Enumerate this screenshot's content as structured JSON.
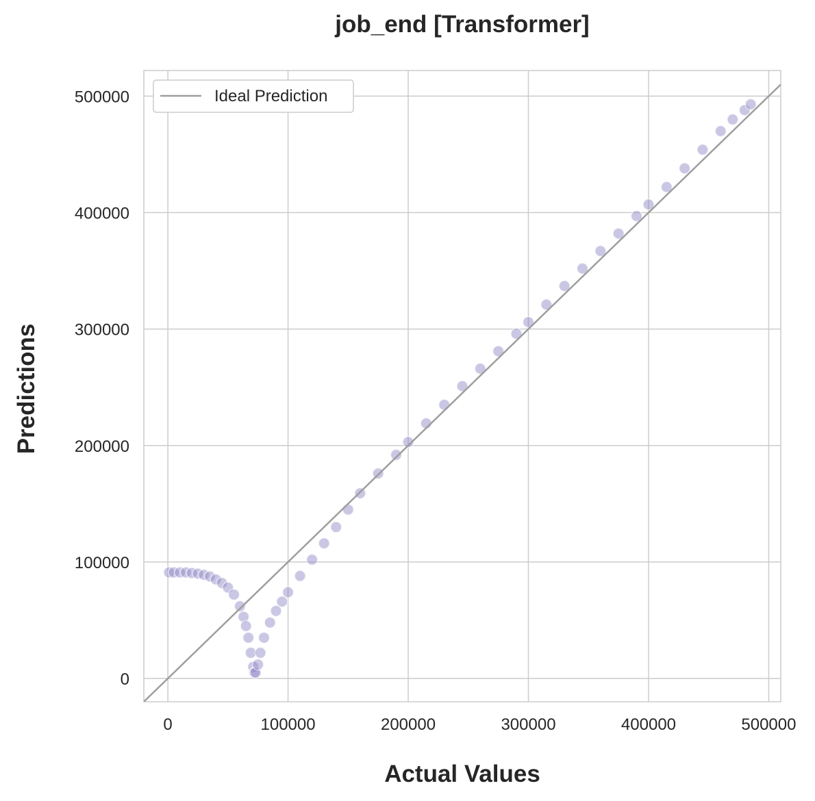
{
  "chart_data": {
    "type": "scatter",
    "title": "job_end [Transformer]",
    "xlabel": "Actual Values",
    "ylabel": "Predictions",
    "xlim": [
      -20000,
      510000
    ],
    "ylim": [
      -20000,
      522000
    ],
    "xticks": [
      0,
      100000,
      200000,
      300000,
      400000,
      500000
    ],
    "yticks": [
      0,
      100000,
      200000,
      300000,
      400000,
      500000
    ],
    "xtick_labels": [
      "0",
      "100000",
      "200000",
      "300000",
      "400000",
      "500000"
    ],
    "ytick_labels": [
      "0",
      "100000",
      "200000",
      "300000",
      "400000",
      "500000"
    ],
    "grid": true,
    "legend": {
      "position": "top-left",
      "entries": [
        "Ideal Prediction"
      ]
    },
    "ideal_line": {
      "name": "Ideal Prediction",
      "color": "#9e9e9e",
      "points": [
        [
          -20000,
          -20000
        ],
        [
          510000,
          510000
        ]
      ]
    },
    "scatter_color": "#8a82c4",
    "series": [
      {
        "values": [
          [
            1000,
            91000
          ],
          [
            5000,
            91000
          ],
          [
            10000,
            91000
          ],
          [
            15000,
            91000
          ],
          [
            20000,
            90500
          ],
          [
            25000,
            90000
          ],
          [
            30000,
            89000
          ],
          [
            35000,
            87500
          ],
          [
            40000,
            85000
          ],
          [
            45000,
            82000
          ],
          [
            50000,
            78000
          ],
          [
            55000,
            72000
          ],
          [
            60000,
            62000
          ],
          [
            63000,
            53000
          ],
          [
            65000,
            45000
          ],
          [
            67000,
            35000
          ],
          [
            69000,
            22000
          ],
          [
            71000,
            10000
          ],
          [
            72000,
            5000
          ],
          [
            73000,
            5000
          ],
          [
            75000,
            12000
          ],
          [
            77000,
            22000
          ],
          [
            80000,
            35000
          ],
          [
            85000,
            48000
          ],
          [
            90000,
            58000
          ],
          [
            95000,
            66000
          ],
          [
            100000,
            74000
          ],
          [
            110000,
            88000
          ],
          [
            120000,
            102000
          ],
          [
            130000,
            116000
          ],
          [
            140000,
            130000
          ],
          [
            150000,
            145000
          ],
          [
            160000,
            159000
          ],
          [
            175000,
            176000
          ],
          [
            190000,
            192000
          ],
          [
            200000,
            203000
          ],
          [
            215000,
            219000
          ],
          [
            230000,
            235000
          ],
          [
            245000,
            251000
          ],
          [
            260000,
            266000
          ],
          [
            275000,
            281000
          ],
          [
            290000,
            296000
          ],
          [
            300000,
            306000
          ],
          [
            315000,
            321000
          ],
          [
            330000,
            337000
          ],
          [
            345000,
            352000
          ],
          [
            360000,
            367000
          ],
          [
            375000,
            382000
          ],
          [
            390000,
            397000
          ],
          [
            400000,
            407000
          ],
          [
            415000,
            422000
          ],
          [
            430000,
            438000
          ],
          [
            445000,
            454000
          ],
          [
            460000,
            470000
          ],
          [
            470000,
            480000
          ],
          [
            480000,
            488000
          ],
          [
            485000,
            493000
          ]
        ]
      }
    ]
  }
}
